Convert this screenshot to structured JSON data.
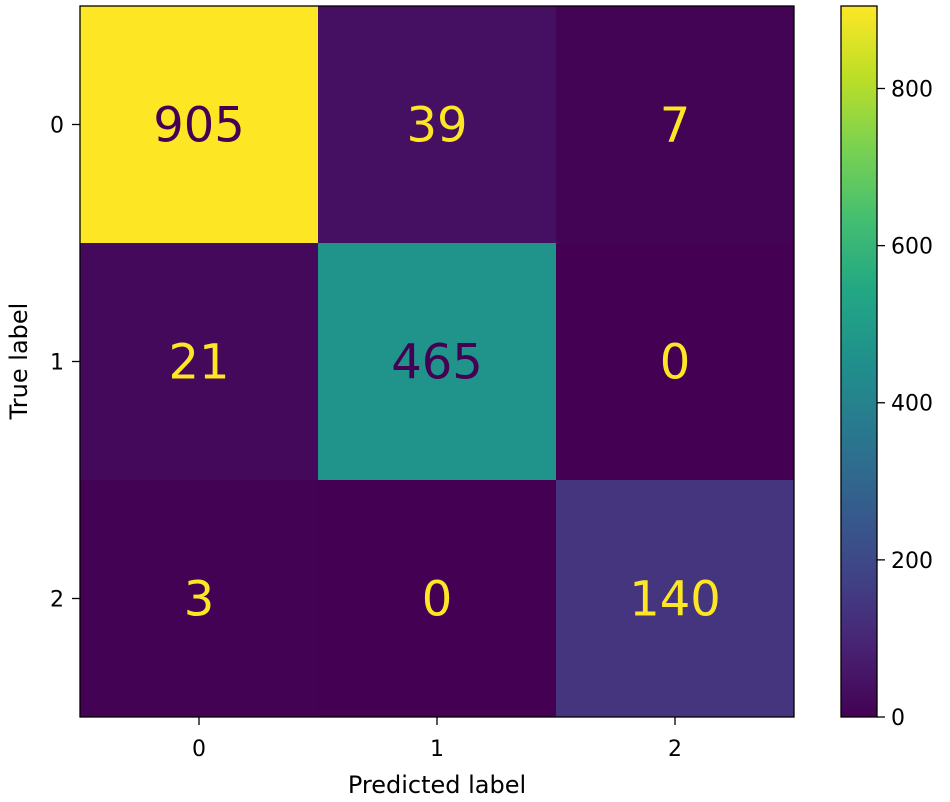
{
  "chart_data": {
    "type": "heatmap",
    "title": "",
    "xlabel": "Predicted label",
    "ylabel": "True label",
    "x_categories": [
      "0",
      "1",
      "2"
    ],
    "y_categories": [
      "0",
      "1",
      "2"
    ],
    "values": [
      [
        905,
        39,
        7
      ],
      [
        21,
        465,
        0
      ],
      [
        3,
        0,
        140
      ]
    ],
    "colormap": "viridis",
    "colorbar": {
      "min": 0,
      "max": 905,
      "ticks": [
        0,
        200,
        400,
        600,
        800
      ]
    },
    "text_color_light": "#fde725",
    "text_color_dark": "#440154"
  }
}
